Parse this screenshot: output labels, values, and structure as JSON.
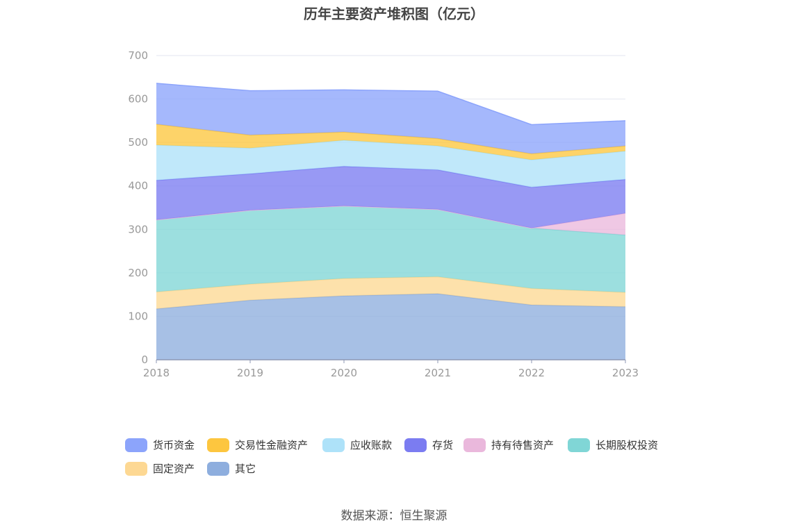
{
  "chart_data": {
    "type": "area",
    "stacked": true,
    "title": "历年主要资产堆积图（亿元）",
    "categories": [
      "2018",
      "2019",
      "2020",
      "2021",
      "2022",
      "2023"
    ],
    "ylim": [
      0,
      700
    ],
    "yticks": [
      0,
      100,
      200,
      300,
      400,
      500,
      600,
      700
    ],
    "series": [
      {
        "name": "其它",
        "color": "#8eaede",
        "values": [
          117,
          137,
          147,
          152,
          126,
          122
        ]
      },
      {
        "name": "固定资产",
        "color": "#fdd893",
        "values": [
          39,
          37,
          40,
          39,
          38,
          33
        ]
      },
      {
        "name": "长期股权投资",
        "color": "#80d6d6",
        "values": [
          166,
          170,
          167,
          155,
          139,
          132
        ]
      },
      {
        "name": "持有待售资产",
        "color": "#eab8dc",
        "values": [
          0,
          0,
          0,
          0,
          0,
          50
        ]
      },
      {
        "name": "存货",
        "color": "#7b7cf1",
        "values": [
          91,
          84,
          91,
          91,
          94,
          78
        ]
      },
      {
        "name": "应收账款",
        "color": "#aee2f9",
        "values": [
          81,
          59,
          60,
          55,
          63,
          65
        ]
      },
      {
        "name": "交易性金融资产",
        "color": "#fdc63f",
        "values": [
          48,
          30,
          19,
          17,
          14,
          12
        ]
      },
      {
        "name": "货币资金",
        "color": "#8ca4fb",
        "values": [
          94,
          102,
          97,
          109,
          67,
          58
        ]
      }
    ]
  },
  "legend": {
    "items": [
      "货币资金",
      "交易性金融资产",
      "应收账款",
      "存货",
      "持有待售资产",
      "长期股权投资",
      "固定资产",
      "其它"
    ],
    "colors": [
      "#8ca4fb",
      "#fdc63f",
      "#aee2f9",
      "#7b7cf1",
      "#eab8dc",
      "#80d6d6",
      "#fdd893",
      "#8eaede"
    ]
  },
  "source": "数据来源：恒生聚源"
}
